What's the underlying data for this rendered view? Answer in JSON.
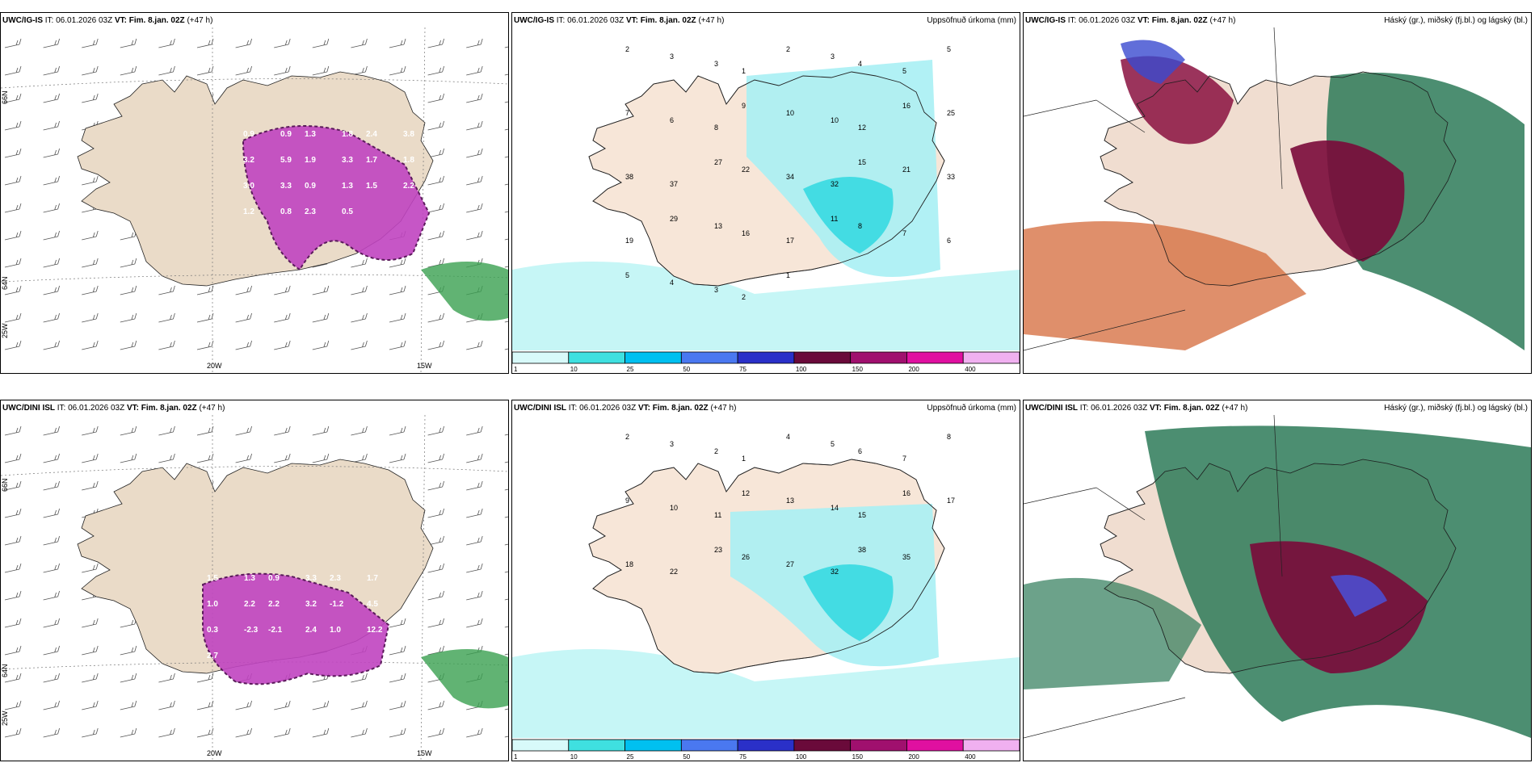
{
  "panels": [
    {
      "model": "UWC/IG-IS",
      "init": "IT: 06.01.2026 03Z",
      "valid": "VT: Fim. 8.jan. 02Z",
      "lead": "(+47 h)",
      "right": ""
    },
    {
      "model": "UWC/IG-IS",
      "init": "IT: 06.01.2026 03Z",
      "valid": "VT: Fim. 8.jan. 02Z",
      "lead": "(+47 h)",
      "right": "Uppsöfnuð úrkoma (mm)"
    },
    {
      "model": "UWC/IG-IS",
      "init": "IT: 06.01.2026 03Z",
      "valid": "VT: Fim. 8.jan. 02Z",
      "lead": "(+47 h)",
      "right": "Háský (gr.), miðský (fj.bl.) og lágský (bl.)"
    },
    {
      "model": "UWC/DINI ISL",
      "init": "IT: 06.01.2026 03Z",
      "valid": "VT: Fim. 8.jan. 02Z",
      "lead": "(+47 h)",
      "right": ""
    },
    {
      "model": "UWC/DINI ISL",
      "init": "IT: 06.01.2026 03Z",
      "valid": "VT: Fim. 8.jan. 02Z",
      "lead": "(+47 h)",
      "right": "Uppsöfnuð úrkoma (mm)"
    },
    {
      "model": "UWC/DINI ISL",
      "init": "IT: 06.01.2026 03Z",
      "valid": "VT: Fim. 8.jan. 02Z",
      "lead": "(+47 h)",
      "right": "Háský (gr.), miðský (fj.bl.) og lágský (bl.)"
    }
  ],
  "axis": {
    "lon_20": "20W",
    "lon_15": "15W",
    "lat_66": "66N",
    "lat_64": "64N",
    "lat_25w": "25W",
    "lat_66_r": "66N",
    "lat_64_r": "64N"
  },
  "colorbar": {
    "ticks": [
      "1",
      "10",
      "25",
      "50",
      "75",
      "100",
      "150",
      "200",
      "400"
    ],
    "colors": [
      "#d8fafa",
      "#3fe0e0",
      "#00c0f0",
      "#4a78f0",
      "#2a30c8",
      "#6a0a3a",
      "#a0106e",
      "#e010a0",
      "#f0b0f0"
    ]
  },
  "snow_labels_top": [
    "0.9",
    "0.9",
    "1.3",
    "1.8",
    "2.4",
    "3.8",
    "3.2",
    "5.9",
    "1.9",
    "3.3",
    "1.7",
    "1.8",
    "3.0",
    "3.3",
    "0.9",
    "1.3",
    "1.5",
    "2.2",
    "1.2",
    "0.8",
    "2.3",
    "0.5"
  ],
  "precip_labels_top": [
    "2",
    "3",
    "3",
    "1",
    "2",
    "3",
    "4",
    "5",
    "5",
    "7",
    "6",
    "8",
    "9",
    "10",
    "10",
    "12",
    "16",
    "25",
    "38",
    "37",
    "27",
    "22",
    "34",
    "32",
    "15",
    "21",
    "33",
    "19",
    "29",
    "13",
    "16",
    "17",
    "11",
    "8",
    "7",
    "6",
    "5",
    "4",
    "3",
    "2",
    "1"
  ],
  "snow_labels_bot": [
    "1.5",
    "1.3",
    "0.9",
    "3.3",
    "2.3",
    "1.7",
    "1.0",
    "2.2",
    "2.2",
    "3.2",
    "-1.2",
    "4.5",
    "0.3",
    "-2.3",
    "-2.1",
    "2.4",
    "1.0",
    "12.2",
    "2.7"
  ],
  "precip_labels_bot": [
    "2",
    "3",
    "2",
    "1",
    "4",
    "5",
    "6",
    "7",
    "8",
    "9",
    "10",
    "11",
    "12",
    "13",
    "14",
    "15",
    "16",
    "17",
    "18",
    "22",
    "23",
    "26",
    "27",
    "32",
    "38",
    "35"
  ]
}
